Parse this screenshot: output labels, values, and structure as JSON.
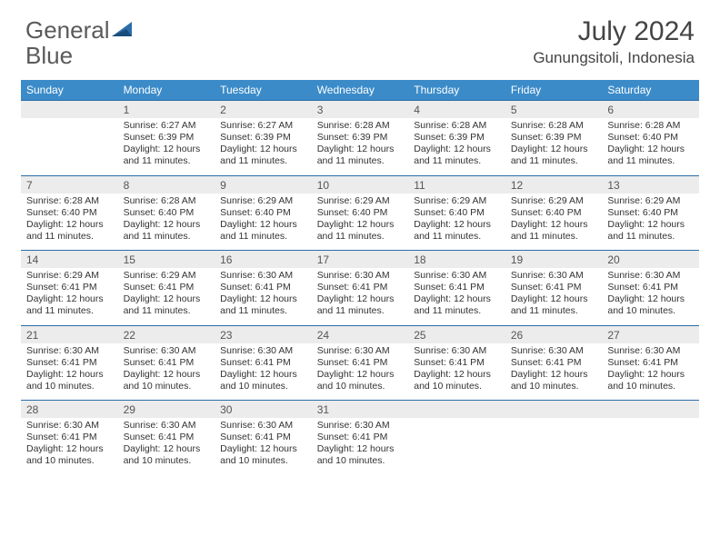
{
  "brand": {
    "part1": "General",
    "part2": "Blue"
  },
  "title": "July 2024",
  "location": "Gunungsitoli, Indonesia",
  "colors": {
    "header_bg": "#3b8bc9",
    "header_text": "#ffffff",
    "border": "#2c6ea8",
    "daynum_bg": "#ececec",
    "text": "#333333",
    "brand_gray": "#5a5a5a",
    "brand_blue": "#2c6ea8"
  },
  "day_headers": [
    "Sunday",
    "Monday",
    "Tuesday",
    "Wednesday",
    "Thursday",
    "Friday",
    "Saturday"
  ],
  "weeks": [
    [
      {
        "num": "",
        "lines": []
      },
      {
        "num": "1",
        "lines": [
          "Sunrise: 6:27 AM",
          "Sunset: 6:39 PM",
          "Daylight: 12 hours",
          "and 11 minutes."
        ]
      },
      {
        "num": "2",
        "lines": [
          "Sunrise: 6:27 AM",
          "Sunset: 6:39 PM",
          "Daylight: 12 hours",
          "and 11 minutes."
        ]
      },
      {
        "num": "3",
        "lines": [
          "Sunrise: 6:28 AM",
          "Sunset: 6:39 PM",
          "Daylight: 12 hours",
          "and 11 minutes."
        ]
      },
      {
        "num": "4",
        "lines": [
          "Sunrise: 6:28 AM",
          "Sunset: 6:39 PM",
          "Daylight: 12 hours",
          "and 11 minutes."
        ]
      },
      {
        "num": "5",
        "lines": [
          "Sunrise: 6:28 AM",
          "Sunset: 6:39 PM",
          "Daylight: 12 hours",
          "and 11 minutes."
        ]
      },
      {
        "num": "6",
        "lines": [
          "Sunrise: 6:28 AM",
          "Sunset: 6:40 PM",
          "Daylight: 12 hours",
          "and 11 minutes."
        ]
      }
    ],
    [
      {
        "num": "7",
        "lines": [
          "Sunrise: 6:28 AM",
          "Sunset: 6:40 PM",
          "Daylight: 12 hours",
          "and 11 minutes."
        ]
      },
      {
        "num": "8",
        "lines": [
          "Sunrise: 6:28 AM",
          "Sunset: 6:40 PM",
          "Daylight: 12 hours",
          "and 11 minutes."
        ]
      },
      {
        "num": "9",
        "lines": [
          "Sunrise: 6:29 AM",
          "Sunset: 6:40 PM",
          "Daylight: 12 hours",
          "and 11 minutes."
        ]
      },
      {
        "num": "10",
        "lines": [
          "Sunrise: 6:29 AM",
          "Sunset: 6:40 PM",
          "Daylight: 12 hours",
          "and 11 minutes."
        ]
      },
      {
        "num": "11",
        "lines": [
          "Sunrise: 6:29 AM",
          "Sunset: 6:40 PM",
          "Daylight: 12 hours",
          "and 11 minutes."
        ]
      },
      {
        "num": "12",
        "lines": [
          "Sunrise: 6:29 AM",
          "Sunset: 6:40 PM",
          "Daylight: 12 hours",
          "and 11 minutes."
        ]
      },
      {
        "num": "13",
        "lines": [
          "Sunrise: 6:29 AM",
          "Sunset: 6:40 PM",
          "Daylight: 12 hours",
          "and 11 minutes."
        ]
      }
    ],
    [
      {
        "num": "14",
        "lines": [
          "Sunrise: 6:29 AM",
          "Sunset: 6:41 PM",
          "Daylight: 12 hours",
          "and 11 minutes."
        ]
      },
      {
        "num": "15",
        "lines": [
          "Sunrise: 6:29 AM",
          "Sunset: 6:41 PM",
          "Daylight: 12 hours",
          "and 11 minutes."
        ]
      },
      {
        "num": "16",
        "lines": [
          "Sunrise: 6:30 AM",
          "Sunset: 6:41 PM",
          "Daylight: 12 hours",
          "and 11 minutes."
        ]
      },
      {
        "num": "17",
        "lines": [
          "Sunrise: 6:30 AM",
          "Sunset: 6:41 PM",
          "Daylight: 12 hours",
          "and 11 minutes."
        ]
      },
      {
        "num": "18",
        "lines": [
          "Sunrise: 6:30 AM",
          "Sunset: 6:41 PM",
          "Daylight: 12 hours",
          "and 11 minutes."
        ]
      },
      {
        "num": "19",
        "lines": [
          "Sunrise: 6:30 AM",
          "Sunset: 6:41 PM",
          "Daylight: 12 hours",
          "and 11 minutes."
        ]
      },
      {
        "num": "20",
        "lines": [
          "Sunrise: 6:30 AM",
          "Sunset: 6:41 PM",
          "Daylight: 12 hours",
          "and 10 minutes."
        ]
      }
    ],
    [
      {
        "num": "21",
        "lines": [
          "Sunrise: 6:30 AM",
          "Sunset: 6:41 PM",
          "Daylight: 12 hours",
          "and 10 minutes."
        ]
      },
      {
        "num": "22",
        "lines": [
          "Sunrise: 6:30 AM",
          "Sunset: 6:41 PM",
          "Daylight: 12 hours",
          "and 10 minutes."
        ]
      },
      {
        "num": "23",
        "lines": [
          "Sunrise: 6:30 AM",
          "Sunset: 6:41 PM",
          "Daylight: 12 hours",
          "and 10 minutes."
        ]
      },
      {
        "num": "24",
        "lines": [
          "Sunrise: 6:30 AM",
          "Sunset: 6:41 PM",
          "Daylight: 12 hours",
          "and 10 minutes."
        ]
      },
      {
        "num": "25",
        "lines": [
          "Sunrise: 6:30 AM",
          "Sunset: 6:41 PM",
          "Daylight: 12 hours",
          "and 10 minutes."
        ]
      },
      {
        "num": "26",
        "lines": [
          "Sunrise: 6:30 AM",
          "Sunset: 6:41 PM",
          "Daylight: 12 hours",
          "and 10 minutes."
        ]
      },
      {
        "num": "27",
        "lines": [
          "Sunrise: 6:30 AM",
          "Sunset: 6:41 PM",
          "Daylight: 12 hours",
          "and 10 minutes."
        ]
      }
    ],
    [
      {
        "num": "28",
        "lines": [
          "Sunrise: 6:30 AM",
          "Sunset: 6:41 PM",
          "Daylight: 12 hours",
          "and 10 minutes."
        ]
      },
      {
        "num": "29",
        "lines": [
          "Sunrise: 6:30 AM",
          "Sunset: 6:41 PM",
          "Daylight: 12 hours",
          "and 10 minutes."
        ]
      },
      {
        "num": "30",
        "lines": [
          "Sunrise: 6:30 AM",
          "Sunset: 6:41 PM",
          "Daylight: 12 hours",
          "and 10 minutes."
        ]
      },
      {
        "num": "31",
        "lines": [
          "Sunrise: 6:30 AM",
          "Sunset: 6:41 PM",
          "Daylight: 12 hours",
          "and 10 minutes."
        ]
      },
      {
        "num": "",
        "lines": []
      },
      {
        "num": "",
        "lines": []
      },
      {
        "num": "",
        "lines": []
      }
    ]
  ]
}
